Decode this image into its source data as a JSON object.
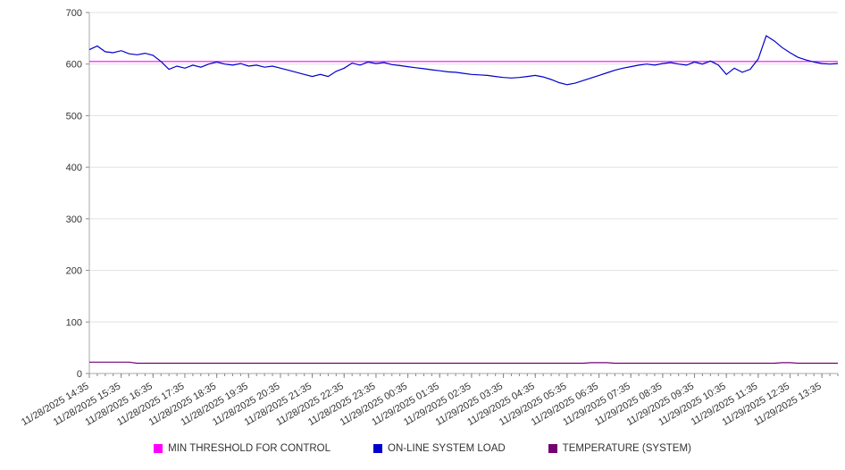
{
  "chart_data": {
    "type": "line",
    "title": "",
    "xlabel": "",
    "ylabel": "",
    "ylim": [
      0,
      700
    ],
    "yticks": [
      0,
      100,
      200,
      300,
      400,
      500,
      600,
      700
    ],
    "grid": "horizontal",
    "legend_position": "bottom",
    "points_per_label": 4,
    "x_tick_labels": [
      "11/28/2025 14:35",
      "11/28/2025 15:35",
      "11/28/2025 16:35",
      "11/28/2025 17:35",
      "11/28/2025 18:35",
      "11/28/2025 19:35",
      "11/28/2025 20:35",
      "11/28/2025 21:35",
      "11/28/2025 22:35",
      "11/28/2025 23:35",
      "11/29/2025 00:35",
      "11/29/2025 01:35",
      "11/29/2025 02:35",
      "11/29/2025 03:35",
      "11/29/2025 04:35",
      "11/29/2025 05:35",
      "11/29/2025 06:35",
      "11/29/2025 07:35",
      "11/29/2025 08:35",
      "11/29/2025 09:35",
      "11/29/2025 10:35",
      "11/29/2025 11:35",
      "11/29/2025 12:35",
      "11/29/2025 13:35"
    ],
    "series": [
      {
        "name": "MIN THRESHOLD FOR CONTROL",
        "color": "#ff00ff",
        "constant": 605
      },
      {
        "name": "ON-LINE SYSTEM LOAD",
        "color": "#0000cc",
        "values": [
          628,
          635,
          624,
          622,
          626,
          620,
          618,
          621,
          617,
          605,
          590,
          596,
          592,
          598,
          594,
          600,
          604,
          600,
          598,
          601,
          596,
          598,
          594,
          596,
          592,
          588,
          584,
          580,
          576,
          580,
          576,
          586,
          592,
          602,
          598,
          604,
          601,
          603,
          599,
          597,
          595,
          593,
          591,
          589,
          587,
          585,
          584,
          582,
          580,
          579,
          578,
          576,
          574,
          573,
          574,
          576,
          578,
          575,
          570,
          564,
          560,
          563,
          568,
          573,
          578,
          583,
          588,
          592,
          595,
          598,
          600,
          598,
          601,
          603,
          600,
          598,
          604,
          600,
          606,
          598,
          580,
          592,
          584,
          590,
          610,
          655,
          645,
          632,
          622,
          613,
          608,
          604,
          601,
          600,
          601
        ]
      },
      {
        "name": "TEMPERATURE (SYSTEM)",
        "color": "#730073",
        "values": [
          22,
          22,
          22,
          22,
          22,
          22,
          20,
          20,
          20,
          20,
          20,
          20,
          20,
          20,
          20,
          20,
          20,
          20,
          20,
          20,
          20,
          20,
          20,
          20,
          20,
          20,
          20,
          20,
          20,
          20,
          20,
          20,
          20,
          20,
          20,
          20,
          20,
          20,
          20,
          20,
          20,
          20,
          20,
          20,
          20,
          20,
          20,
          20,
          20,
          20,
          20,
          20,
          20,
          20,
          20,
          20,
          20,
          20,
          20,
          20,
          20,
          20,
          20,
          21,
          21,
          21,
          20,
          20,
          20,
          20,
          20,
          20,
          20,
          20,
          20,
          20,
          20,
          20,
          20,
          20,
          20,
          20,
          20,
          20,
          20,
          20,
          20,
          21,
          21,
          20,
          20,
          20,
          20,
          20,
          20
        ]
      }
    ]
  }
}
